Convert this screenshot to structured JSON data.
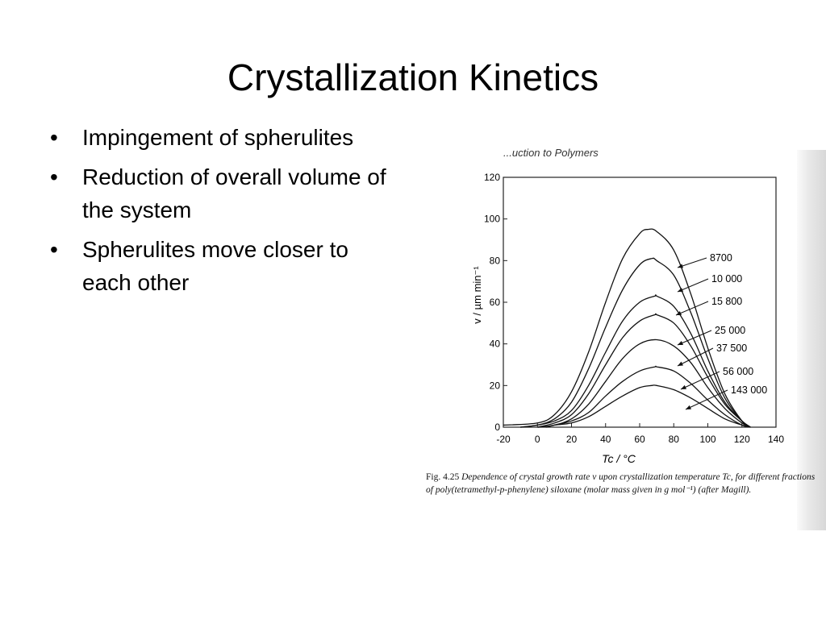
{
  "slide": {
    "title": "Crystallization Kinetics",
    "bullets": [
      "Impingement of spherulites",
      "Reduction of overall volume of the system",
      "Spherulites move closer to each other"
    ],
    "figure_caption": {
      "label": "Fig. 4.25",
      "text": "Dependence of crystal growth rate v upon crystallization temperature Tc, for different fractions of poly(tetramethyl-p-phenylene) siloxane (molar mass given in g mol⁻¹) (after Magill)."
    },
    "scan_header": "...uction to Polymers"
  },
  "chart_data": {
    "type": "line",
    "title": "",
    "xlabel": "Tc / °C",
    "ylabel": "v / µm min⁻¹",
    "xlim": [
      -20,
      140
    ],
    "ylim": [
      0,
      120
    ],
    "x_ticks": [
      -20,
      0,
      20,
      40,
      60,
      80,
      100,
      120,
      140
    ],
    "y_ticks": [
      0,
      20,
      40,
      60,
      80,
      100,
      120
    ],
    "grid": false,
    "legend": "curve labels with arrows on the right",
    "series": [
      {
        "name": "8700",
        "peak": {
          "x": 65,
          "y": 95
        },
        "sigma": 20,
        "values": [
          [
            -20,
            1
          ],
          [
            0,
            2
          ],
          [
            10,
            6
          ],
          [
            20,
            17
          ],
          [
            30,
            36
          ],
          [
            40,
            60
          ],
          [
            50,
            81
          ],
          [
            60,
            93
          ],
          [
            65,
            95
          ],
          [
            70,
            94
          ],
          [
            80,
            85
          ],
          [
            90,
            64
          ],
          [
            100,
            38
          ],
          [
            110,
            16
          ],
          [
            120,
            3
          ],
          [
            125,
            0
          ]
        ]
      },
      {
        "name": "10 000",
        "peak": {
          "x": 67,
          "y": 81
        },
        "sigma": 20,
        "values": [
          [
            -10,
            0
          ],
          [
            0,
            1
          ],
          [
            10,
            4
          ],
          [
            20,
            12
          ],
          [
            30,
            28
          ],
          [
            40,
            48
          ],
          [
            50,
            66
          ],
          [
            60,
            78
          ],
          [
            67,
            81
          ],
          [
            70,
            80
          ],
          [
            80,
            73
          ],
          [
            90,
            55
          ],
          [
            100,
            33
          ],
          [
            110,
            14
          ],
          [
            120,
            3
          ],
          [
            125,
            0
          ]
        ]
      },
      {
        "name": "15 800",
        "peak": {
          "x": 69,
          "y": 63
        },
        "sigma": 20,
        "values": [
          [
            -10,
            0
          ],
          [
            0,
            1
          ],
          [
            10,
            3
          ],
          [
            20,
            8
          ],
          [
            30,
            20
          ],
          [
            40,
            36
          ],
          [
            50,
            51
          ],
          [
            60,
            60
          ],
          [
            69,
            63
          ],
          [
            70,
            63
          ],
          [
            80,
            58
          ],
          [
            90,
            45
          ],
          [
            100,
            27
          ],
          [
            110,
            12
          ],
          [
            120,
            3
          ],
          [
            125,
            0
          ]
        ]
      },
      {
        "name": "25 000",
        "peak": {
          "x": 69,
          "y": 54
        },
        "sigma": 20,
        "values": [
          [
            0,
            0
          ],
          [
            10,
            2
          ],
          [
            20,
            6
          ],
          [
            30,
            16
          ],
          [
            40,
            30
          ],
          [
            50,
            43
          ],
          [
            60,
            51
          ],
          [
            69,
            54
          ],
          [
            70,
            54
          ],
          [
            80,
            50
          ],
          [
            90,
            39
          ],
          [
            100,
            24
          ],
          [
            110,
            11
          ],
          [
            120,
            3
          ],
          [
            125,
            0
          ]
        ]
      },
      {
        "name": "37 500",
        "peak": {
          "x": 70,
          "y": 42
        },
        "sigma": 20,
        "values": [
          [
            0,
            0
          ],
          [
            10,
            1
          ],
          [
            20,
            4
          ],
          [
            30,
            11
          ],
          [
            40,
            22
          ],
          [
            50,
            33
          ],
          [
            60,
            40
          ],
          [
            70,
            42
          ],
          [
            80,
            39
          ],
          [
            90,
            31
          ],
          [
            100,
            19
          ],
          [
            110,
            9
          ],
          [
            120,
            2
          ],
          [
            125,
            0
          ]
        ]
      },
      {
        "name": "56 000",
        "peak": {
          "x": 69,
          "y": 29
        },
        "sigma": 19,
        "values": [
          [
            5,
            0
          ],
          [
            10,
            1
          ],
          [
            20,
            3
          ],
          [
            30,
            7
          ],
          [
            40,
            15
          ],
          [
            50,
            22
          ],
          [
            60,
            27
          ],
          [
            69,
            29
          ],
          [
            70,
            29
          ],
          [
            80,
            27
          ],
          [
            90,
            21
          ],
          [
            100,
            13
          ],
          [
            110,
            6
          ],
          [
            120,
            1
          ],
          [
            125,
            0
          ]
        ]
      },
      {
        "name": "143 000",
        "peak": {
          "x": 67,
          "y": 20
        },
        "sigma": 19,
        "values": [
          [
            5,
            0
          ],
          [
            10,
            1
          ],
          [
            20,
            2
          ],
          [
            30,
            5
          ],
          [
            40,
            10
          ],
          [
            50,
            15
          ],
          [
            60,
            19
          ],
          [
            67,
            20
          ],
          [
            70,
            20
          ],
          [
            80,
            18
          ],
          [
            90,
            14
          ],
          [
            100,
            9
          ],
          [
            110,
            4
          ],
          [
            120,
            1
          ],
          [
            125,
            0
          ]
        ]
      }
    ]
  }
}
